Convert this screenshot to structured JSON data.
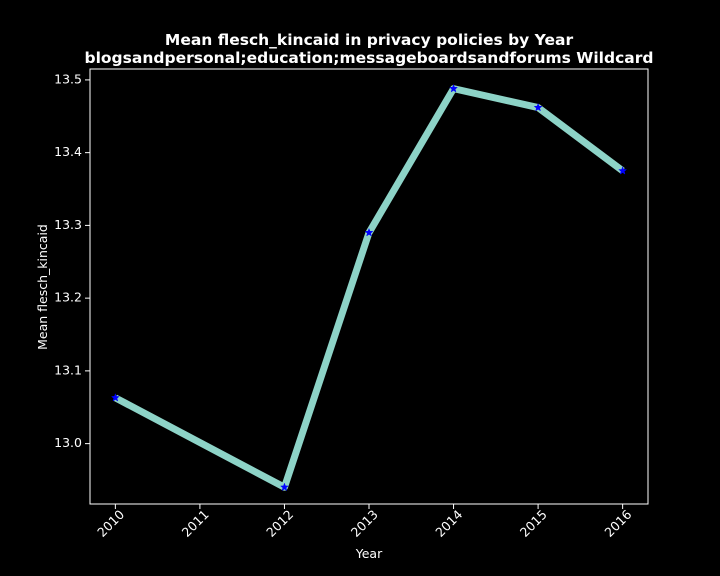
{
  "chart_data": {
    "type": "line",
    "title_line1": "Mean flesch_kincaid in privacy policies by Year",
    "title_line2": "blogsandpersonal;education;messageboardsandforums Wildcard",
    "xlabel": "Year",
    "ylabel": "Mean flesch_kincaid",
    "x_ticks": [
      "2010",
      "2011",
      "2012",
      "2013",
      "2014",
      "2015",
      "2016"
    ],
    "y_ticks": [
      "13.0",
      "13.1",
      "13.2",
      "13.3",
      "13.4",
      "13.5"
    ],
    "xlim": [
      2009.7,
      2016.3
    ],
    "ylim": [
      12.917,
      13.515
    ],
    "grid": false,
    "series": [
      {
        "x": [
          2010,
          2012,
          2013,
          2014,
          2015,
          2016
        ],
        "y": [
          13.063,
          12.94,
          13.29,
          13.488,
          13.462,
          13.375
        ],
        "line_color": "#8dd3c7",
        "marker": "star",
        "marker_color": "#0000ff"
      }
    ]
  },
  "colors": {
    "background": "#000000",
    "axes": "#ffffff",
    "text": "#ffffff"
  }
}
